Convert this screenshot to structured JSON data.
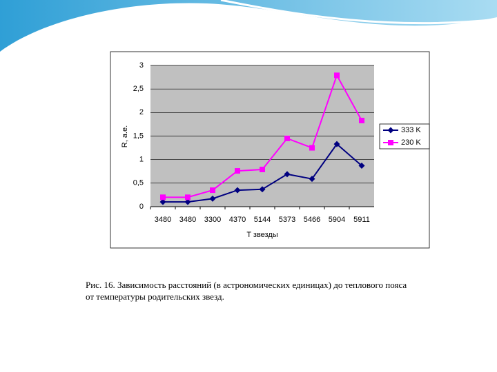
{
  "chart_data": {
    "type": "line",
    "xlabel": "T звезды",
    "ylabel": "R, а.е.",
    "categories": [
      "3480",
      "3480",
      "3300",
      "4370",
      "5144",
      "5373",
      "5466",
      "5904",
      "5911"
    ],
    "series": [
      {
        "name": "333 K",
        "color": "#000080",
        "marker": "diamond",
        "values": [
          0.1,
          0.1,
          0.17,
          0.35,
          0.37,
          0.69,
          0.59,
          1.33,
          0.87
        ]
      },
      {
        "name": "230 K",
        "color": "#ff00ff",
        "marker": "square",
        "values": [
          0.2,
          0.2,
          0.35,
          0.76,
          0.79,
          1.45,
          1.25,
          2.79,
          1.83
        ]
      }
    ],
    "ylim": [
      0,
      3
    ],
    "yticks": [
      0,
      {
        "value": 0.5,
        "label": "0,5"
      },
      1,
      {
        "value": 1.5,
        "label": "1,5"
      },
      2,
      {
        "value": 2.5,
        "label": "2,5"
      },
      3
    ],
    "grid": true,
    "legend": "right",
    "caption": "Рис. 16. Зависимость расстояний (в астрономических единицах) до теплового пояса от температуры родительских звезд."
  }
}
